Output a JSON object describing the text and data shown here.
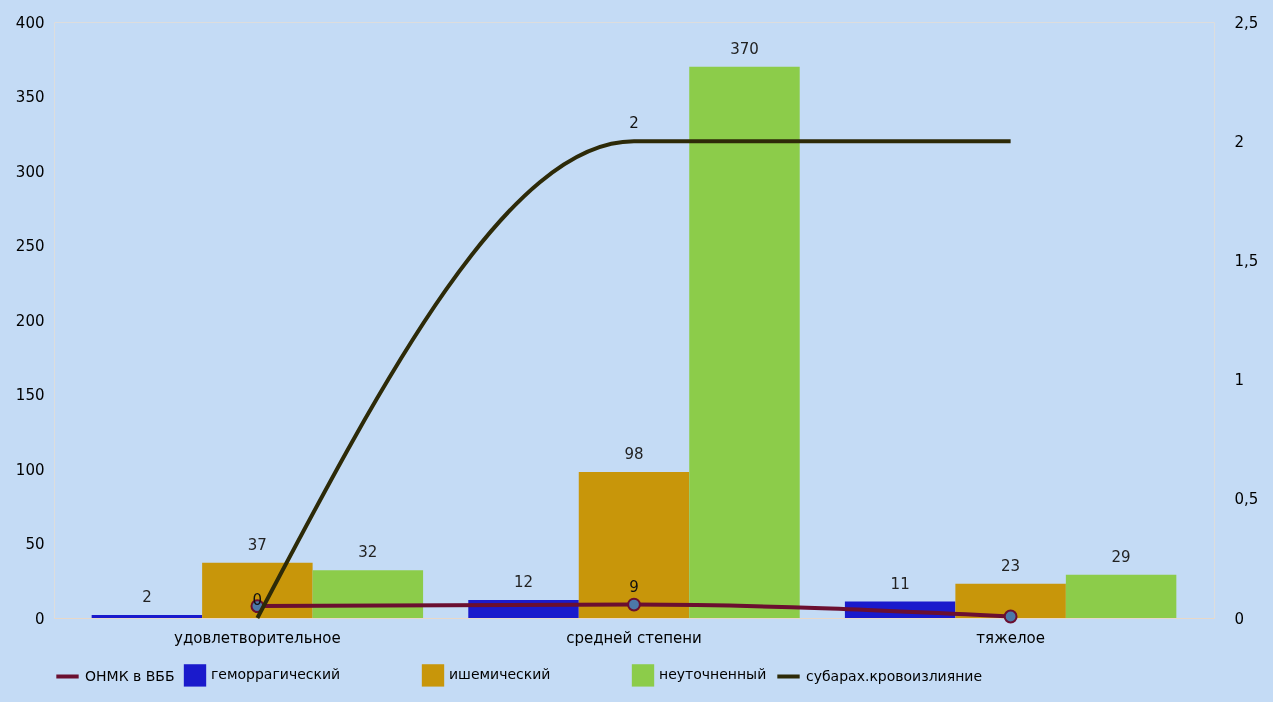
{
  "chart_data": {
    "type": "bar",
    "categories": [
      "удовлетворительное",
      "средней степени",
      "тяжелое"
    ],
    "series": [
      {
        "name": "геморрагический",
        "color": "#1a1acc",
        "values": [
          2,
          12,
          11
        ],
        "value_labels": [
          "2",
          "12",
          "11"
        ]
      },
      {
        "name": "ишемический",
        "color": "#c8960a",
        "values": [
          37,
          98,
          23
        ],
        "value_labels": [
          "37",
          "98",
          "23"
        ]
      },
      {
        "name": "неуточненный",
        "color": "#8ccc4a",
        "values": [
          32,
          370,
          29
        ],
        "value_labels": [
          "32",
          "370",
          "29"
        ]
      },
      {
        "name": "ОНМК в ВББ",
        "type": "line",
        "color": "#6b0f30",
        "marker": "circle",
        "values": [
          8,
          9,
          1
        ],
        "value_labels": [
          null,
          "9",
          null
        ]
      },
      {
        "name": "субарах.кровоизлияние",
        "type": "line",
        "axis": "y2",
        "color": "#2d2a08",
        "marker": "none",
        "values": [
          0,
          2,
          2
        ],
        "value_labels": [
          "0",
          "2",
          null
        ]
      }
    ],
    "ylim": [
      0,
      400
    ],
    "yticks": [
      0,
      50,
      100,
      150,
      200,
      250,
      300,
      350,
      400
    ],
    "y2lim": [
      0,
      2.5
    ],
    "y2ticks": [
      0,
      {
        "value": 0.5,
        "label": "0,5"
      },
      1,
      {
        "value": 1.5,
        "label": "1,5"
      },
      2,
      {
        "value": 2.5,
        "label": "2,5"
      }
    ],
    "grid": false,
    "legend": "bottom"
  }
}
